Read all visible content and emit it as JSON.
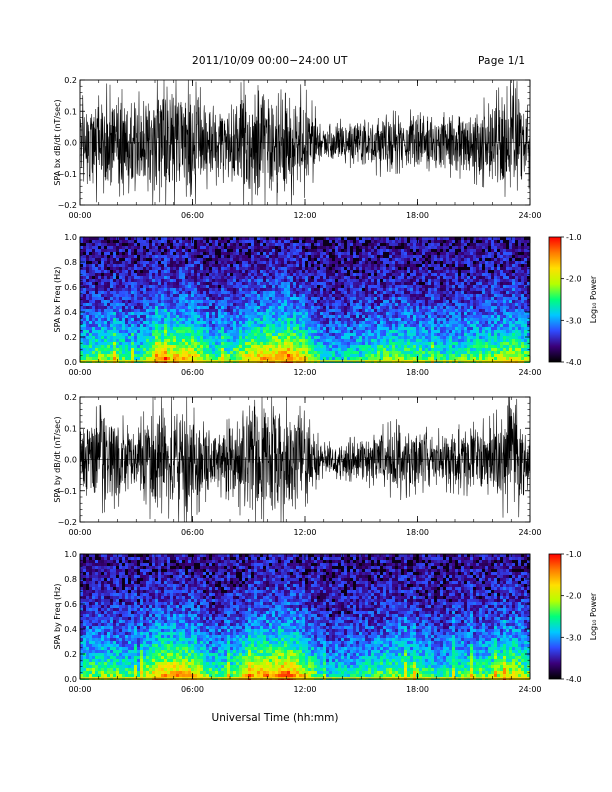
{
  "header": {
    "title": "2011/10/09   00:00−24:00 UT",
    "page": "Page 1/1"
  },
  "xaxis": {
    "label": "Universal Time (hh:mm)",
    "ticks": [
      "00:00",
      "06:00",
      "12:00",
      "18:00",
      "24:00"
    ],
    "range_hours": [
      0,
      24
    ]
  },
  "colorbar": {
    "label": "Log₁₀ Power",
    "ticks": [
      "-1.0",
      "-2.0",
      "-3.0",
      "-4.0"
    ],
    "range": [
      -4.0,
      -1.0
    ],
    "colors": [
      "#000000",
      "#3a007a",
      "#2f4cff",
      "#00c8ff",
      "#00ff7a",
      "#b6ff00",
      "#ffe000",
      "#ff7a00",
      "#ff0000"
    ]
  },
  "chart_data": [
    {
      "type": "line",
      "title": "",
      "ylabel": "SPA bx dB/dt (nT/sec)",
      "xlabel": "",
      "ylim": [
        -0.2,
        0.2
      ],
      "yticks": [
        "0.2",
        "0.1",
        "0.0",
        "−0.1",
        "−0.2"
      ],
      "series_color": "#000000",
      "envelope": {
        "hours": [
          0,
          1,
          2,
          3,
          4,
          5,
          6,
          7,
          8,
          9,
          10,
          11,
          12,
          13,
          14,
          15,
          16,
          17,
          18,
          19,
          20,
          21,
          22,
          23,
          24
        ],
        "amplitude": [
          0.13,
          0.18,
          0.16,
          0.14,
          0.2,
          0.2,
          0.19,
          0.12,
          0.14,
          0.2,
          0.2,
          0.2,
          0.16,
          0.06,
          0.07,
          0.08,
          0.1,
          0.09,
          0.1,
          0.11,
          0.1,
          0.12,
          0.14,
          0.2,
          0.13
        ]
      }
    },
    {
      "type": "heatmap",
      "title": "",
      "ylabel": "SPA bx Freq (Hz)",
      "xlabel": "",
      "ylim": [
        0.0,
        1.0
      ],
      "yticks": [
        "1.0",
        "0.8",
        "0.6",
        "0.4",
        "0.2",
        "0.0"
      ],
      "activity_hours": [
        0,
        1,
        2,
        3,
        4,
        5,
        6,
        7,
        8,
        9,
        10,
        11,
        12,
        13,
        14,
        15,
        16,
        17,
        18,
        19,
        20,
        21,
        22,
        23,
        24
      ],
      "activity_level": [
        0.5,
        0.6,
        0.55,
        0.45,
        0.8,
        0.85,
        0.8,
        0.5,
        0.55,
        0.8,
        0.85,
        0.95,
        0.7,
        0.35,
        0.4,
        0.45,
        0.55,
        0.6,
        0.55,
        0.45,
        0.5,
        0.55,
        0.6,
        0.75,
        0.5
      ]
    },
    {
      "type": "line",
      "title": "",
      "ylabel": "SPA by dB/dt (nT/sec)",
      "xlabel": "",
      "ylim": [
        -0.2,
        0.2
      ],
      "yticks": [
        "0.2",
        "0.1",
        "0.0",
        "−0.1",
        "−0.2"
      ],
      "series_color": "#000000",
      "envelope": {
        "hours": [
          0,
          1,
          2,
          3,
          4,
          5,
          6,
          7,
          8,
          9,
          10,
          11,
          12,
          13,
          14,
          15,
          16,
          17,
          18,
          19,
          20,
          21,
          22,
          23,
          24
        ],
        "amplitude": [
          0.12,
          0.16,
          0.14,
          0.1,
          0.2,
          0.2,
          0.18,
          0.1,
          0.12,
          0.2,
          0.2,
          0.2,
          0.14,
          0.05,
          0.06,
          0.07,
          0.1,
          0.12,
          0.1,
          0.09,
          0.1,
          0.11,
          0.13,
          0.2,
          0.12
        ]
      }
    },
    {
      "type": "heatmap",
      "title": "",
      "ylabel": "SPA by Freq (Hz)",
      "xlabel": "",
      "ylim": [
        0.0,
        1.0
      ],
      "yticks": [
        "1.0",
        "0.8",
        "0.6",
        "0.4",
        "0.2",
        "0.0"
      ],
      "activity_hours": [
        0,
        1,
        2,
        3,
        4,
        5,
        6,
        7,
        8,
        9,
        10,
        11,
        12,
        13,
        14,
        15,
        16,
        17,
        18,
        19,
        20,
        21,
        22,
        23,
        24
      ],
      "activity_level": [
        0.55,
        0.6,
        0.55,
        0.45,
        0.85,
        0.9,
        0.8,
        0.5,
        0.55,
        0.85,
        0.9,
        1.0,
        0.7,
        0.35,
        0.4,
        0.45,
        0.55,
        0.6,
        0.55,
        0.45,
        0.5,
        0.55,
        0.6,
        0.75,
        0.55
      ]
    }
  ]
}
